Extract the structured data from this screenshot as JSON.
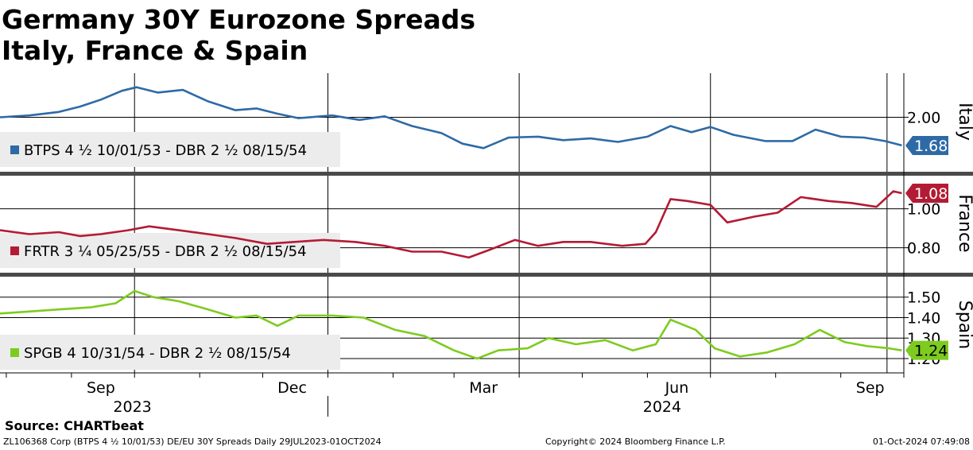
{
  "title_line1": "Germany 30Y Eurozone Spreads",
  "title_line2": "Italy, France & Spain",
  "source": "Source: CHARTbeat",
  "footer": {
    "left": "ZL106368 Corp (BTPS 4 ½ 10/01/53) DE/EU 30Y Spreads  Daily 29JUL2023-01OCT2024",
    "center": "Copyright© 2024 Bloomberg Finance L.P.",
    "right": "01-Oct-2024 07:49:08"
  },
  "chart_data": {
    "type": "line",
    "x_start": "2023-07-29",
    "x_end": "2024-10-01",
    "x_month_labels": [
      {
        "label": "Sep",
        "date": "2023-09-15"
      },
      {
        "label": "Dec",
        "date": "2023-12-15"
      },
      {
        "label": "Mar",
        "date": "2024-03-15"
      },
      {
        "label": "Jun",
        "date": "2024-06-15"
      },
      {
        "label": "Sep",
        "date": "2024-09-15"
      }
    ],
    "x_year_labels": [
      {
        "label": "2023",
        "date": "2023-09-30"
      },
      {
        "label": "2024",
        "date": "2024-06-08"
      }
    ],
    "panels": [
      {
        "name": "Italy",
        "series_label": "BTPS 4 ½ 10/01/53 - DBR 2 ½ 08/15/54",
        "color": "#2e6aa6",
        "last_value": "1.68",
        "ylim": [
          1.4,
          2.5
        ],
        "yticks": [
          "2.00"
        ],
        "points": [
          [
            "2023-07-29",
            2.0
          ],
          [
            "2023-08-12",
            2.02
          ],
          [
            "2023-08-26",
            2.06
          ],
          [
            "2023-09-05",
            2.12
          ],
          [
            "2023-09-15",
            2.2
          ],
          [
            "2023-09-25",
            2.3
          ],
          [
            "2023-10-02",
            2.34
          ],
          [
            "2023-10-12",
            2.28
          ],
          [
            "2023-10-24",
            2.31
          ],
          [
            "2023-11-05",
            2.18
          ],
          [
            "2023-11-18",
            2.08
          ],
          [
            "2023-11-28",
            2.1
          ],
          [
            "2023-12-08",
            2.04
          ],
          [
            "2023-12-18",
            1.99
          ],
          [
            "2024-01-03",
            2.02
          ],
          [
            "2024-01-16",
            1.97
          ],
          [
            "2024-01-28",
            2.01
          ],
          [
            "2024-02-10",
            1.9
          ],
          [
            "2024-02-24",
            1.82
          ],
          [
            "2024-03-05",
            1.7
          ],
          [
            "2024-03-15",
            1.65
          ],
          [
            "2024-03-27",
            1.77
          ],
          [
            "2024-04-10",
            1.78
          ],
          [
            "2024-04-22",
            1.74
          ],
          [
            "2024-05-05",
            1.76
          ],
          [
            "2024-05-18",
            1.72
          ],
          [
            "2024-06-01",
            1.78
          ],
          [
            "2024-06-12",
            1.9
          ],
          [
            "2024-06-22",
            1.83
          ],
          [
            "2024-07-01",
            1.89
          ],
          [
            "2024-07-12",
            1.8
          ],
          [
            "2024-07-27",
            1.73
          ],
          [
            "2024-08-09",
            1.73
          ],
          [
            "2024-08-20",
            1.86
          ],
          [
            "2024-09-01",
            1.78
          ],
          [
            "2024-09-12",
            1.77
          ],
          [
            "2024-09-22",
            1.73
          ],
          [
            "2024-09-30",
            1.68
          ]
        ]
      },
      {
        "name": "France",
        "series_label": "FRTR 3 ¼ 05/25/55 - DBR 2 ½ 08/15/54",
        "color": "#b31b34",
        "last_value": "1.08",
        "ylim": [
          0.68,
          1.17
        ],
        "yticks": [
          "1.00",
          "0.80"
        ],
        "points": [
          [
            "2023-07-29",
            0.89
          ],
          [
            "2023-08-12",
            0.87
          ],
          [
            "2023-08-26",
            0.88
          ],
          [
            "2023-09-05",
            0.86
          ],
          [
            "2023-09-15",
            0.87
          ],
          [
            "2023-09-28",
            0.89
          ],
          [
            "2023-10-08",
            0.91
          ],
          [
            "2023-10-22",
            0.89
          ],
          [
            "2023-11-05",
            0.87
          ],
          [
            "2023-11-18",
            0.85
          ],
          [
            "2023-12-03",
            0.82
          ],
          [
            "2023-12-16",
            0.83
          ],
          [
            "2023-12-30",
            0.84
          ],
          [
            "2024-01-14",
            0.83
          ],
          [
            "2024-01-28",
            0.81
          ],
          [
            "2024-02-10",
            0.78
          ],
          [
            "2024-02-24",
            0.78
          ],
          [
            "2024-03-08",
            0.75
          ],
          [
            "2024-03-18",
            0.79
          ],
          [
            "2024-03-30",
            0.84
          ],
          [
            "2024-04-10",
            0.81
          ],
          [
            "2024-04-22",
            0.83
          ],
          [
            "2024-05-05",
            0.83
          ],
          [
            "2024-05-20",
            0.81
          ],
          [
            "2024-05-31",
            0.82
          ],
          [
            "2024-06-05",
            0.88
          ],
          [
            "2024-06-12",
            1.05
          ],
          [
            "2024-06-20",
            1.04
          ],
          [
            "2024-07-01",
            1.02
          ],
          [
            "2024-07-09",
            0.93
          ],
          [
            "2024-07-22",
            0.96
          ],
          [
            "2024-08-02",
            0.98
          ],
          [
            "2024-08-13",
            1.06
          ],
          [
            "2024-08-26",
            1.04
          ],
          [
            "2024-09-06",
            1.03
          ],
          [
            "2024-09-18",
            1.01
          ],
          [
            "2024-09-26",
            1.09
          ],
          [
            "2024-09-30",
            1.08
          ]
        ]
      },
      {
        "name": "Spain",
        "series_label": "SPGB 4 10/31/54 - DBR 2 ½ 08/15/54",
        "color": "#7ecb20",
        "last_value": "1.24",
        "ylim": [
          1.13,
          1.6
        ],
        "yticks": [
          "1.50",
          "1.40",
          "1.30",
          "1.20"
        ],
        "points": [
          [
            "2023-07-29",
            1.42
          ],
          [
            "2023-08-12",
            1.43
          ],
          [
            "2023-08-26",
            1.44
          ],
          [
            "2023-09-10",
            1.45
          ],
          [
            "2023-09-22",
            1.47
          ],
          [
            "2023-10-01",
            1.53
          ],
          [
            "2023-10-10",
            1.5
          ],
          [
            "2023-10-22",
            1.48
          ],
          [
            "2023-11-05",
            1.44
          ],
          [
            "2023-11-18",
            1.4
          ],
          [
            "2023-11-28",
            1.41
          ],
          [
            "2023-12-08",
            1.36
          ],
          [
            "2023-12-18",
            1.41
          ],
          [
            "2024-01-03",
            1.41
          ],
          [
            "2024-01-18",
            1.4
          ],
          [
            "2024-02-02",
            1.34
          ],
          [
            "2024-02-16",
            1.31
          ],
          [
            "2024-03-01",
            1.24
          ],
          [
            "2024-03-12",
            1.2
          ],
          [
            "2024-03-22",
            1.24
          ],
          [
            "2024-04-05",
            1.25
          ],
          [
            "2024-04-15",
            1.3
          ],
          [
            "2024-04-28",
            1.27
          ],
          [
            "2024-05-12",
            1.29
          ],
          [
            "2024-05-25",
            1.24
          ],
          [
            "2024-06-05",
            1.27
          ],
          [
            "2024-06-12",
            1.39
          ],
          [
            "2024-06-24",
            1.34
          ],
          [
            "2024-07-03",
            1.25
          ],
          [
            "2024-07-15",
            1.21
          ],
          [
            "2024-07-28",
            1.23
          ],
          [
            "2024-08-10",
            1.27
          ],
          [
            "2024-08-22",
            1.34
          ],
          [
            "2024-09-03",
            1.28
          ],
          [
            "2024-09-14",
            1.26
          ],
          [
            "2024-09-24",
            1.25
          ],
          [
            "2024-09-30",
            1.24
          ]
        ]
      }
    ]
  }
}
